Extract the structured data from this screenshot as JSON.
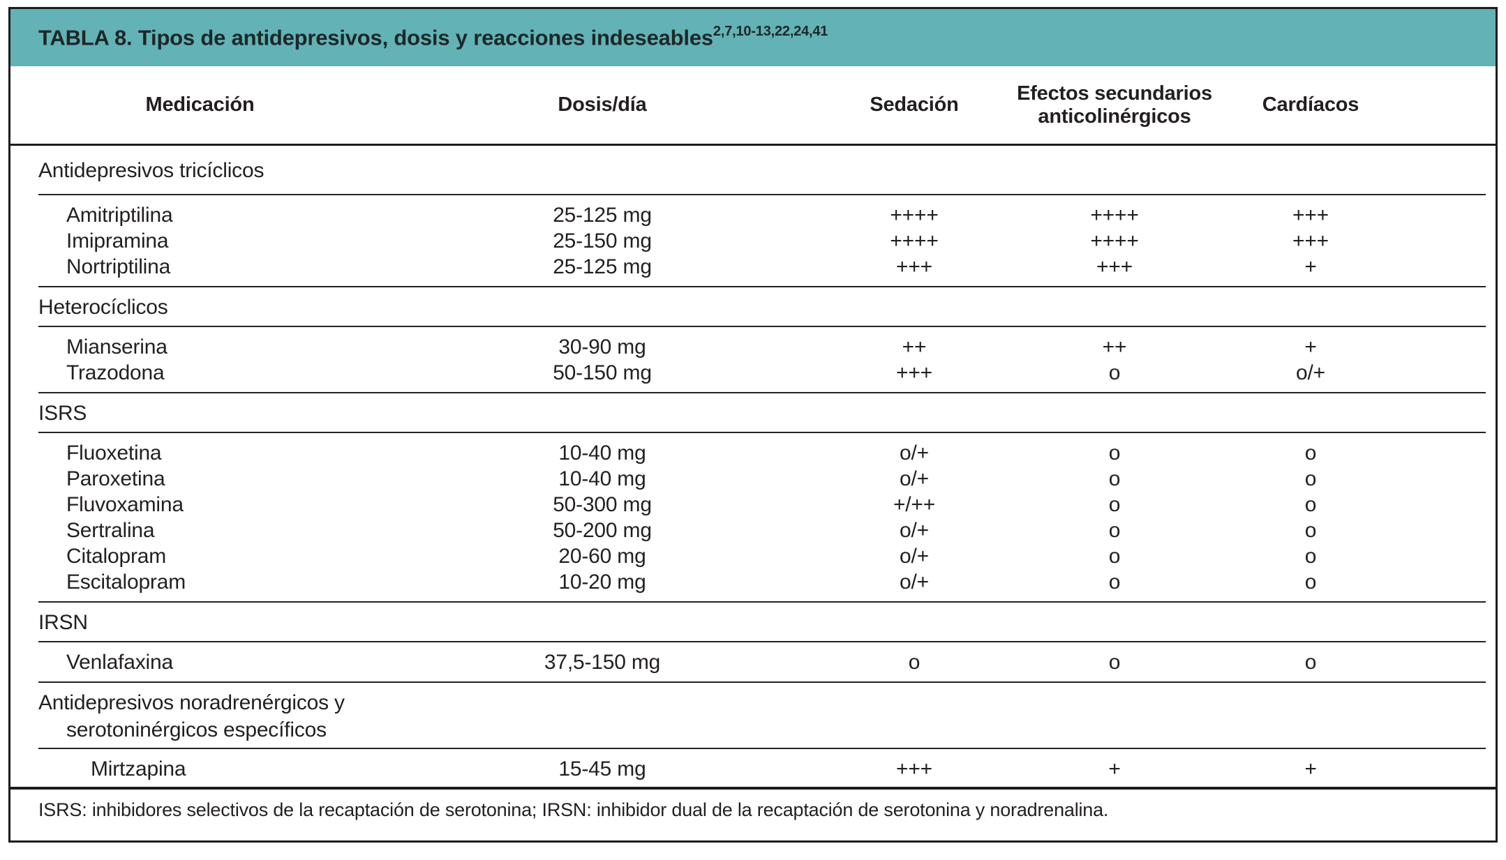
{
  "table": {
    "title": "TABLA 8. Tipos de antidepresivos, dosis y reacciones indeseables",
    "title_superscript": "2,7,10-13,22,24,41",
    "columns": [
      "Medicación",
      "Dosis/día",
      "Sedación",
      "Efectos secundarios anticolinérgicos",
      "Cardíacos"
    ],
    "sections": [
      {
        "label": "Antidepresivos tricíclicos",
        "rows": [
          {
            "name": "Amitriptilina",
            "dose": "25-125 mg",
            "sedation": "++++",
            "anticholinergic": "++++",
            "cardiac": "+++"
          },
          {
            "name": "Imipramina",
            "dose": "25-150 mg",
            "sedation": "++++",
            "anticholinergic": "++++",
            "cardiac": "+++"
          },
          {
            "name": "Nortriptilina",
            "dose": "25-125 mg",
            "sedation": "+++",
            "anticholinergic": "+++",
            "cardiac": "+"
          }
        ]
      },
      {
        "label": "Heterocíclicos",
        "rows": [
          {
            "name": "Mianserina",
            "dose": "30-90 mg",
            "sedation": "++",
            "anticholinergic": "++",
            "cardiac": "+"
          },
          {
            "name": "Trazodona",
            "dose": "50-150 mg",
            "sedation": "+++",
            "anticholinergic": "o",
            "cardiac": "o/+"
          }
        ]
      },
      {
        "label": "ISRS",
        "rows": [
          {
            "name": "Fluoxetina",
            "dose": "10-40 mg",
            "sedation": "o/+",
            "anticholinergic": "o",
            "cardiac": "o"
          },
          {
            "name": "Paroxetina",
            "dose": "10-40 mg",
            "sedation": "o/+",
            "anticholinergic": "o",
            "cardiac": "o"
          },
          {
            "name": "Fluvoxamina",
            "dose": "50-300 mg",
            "sedation": "+/++",
            "anticholinergic": "o",
            "cardiac": "o"
          },
          {
            "name": "Sertralina",
            "dose": "50-200 mg",
            "sedation": "o/+",
            "anticholinergic": "o",
            "cardiac": "o"
          },
          {
            "name": "Citalopram",
            "dose": "20-60 mg",
            "sedation": "o/+",
            "anticholinergic": "o",
            "cardiac": "o"
          },
          {
            "name": "Escitalopram",
            "dose": "10-20 mg",
            "sedation": "o/+",
            "anticholinergic": "o",
            "cardiac": "o"
          }
        ]
      },
      {
        "label": "IRSN",
        "rows": [
          {
            "name": "Venlafaxina",
            "dose": "37,5-150 mg",
            "sedation": "o",
            "anticholinergic": "o",
            "cardiac": "o"
          }
        ]
      },
      {
        "label": "Antidepresivos noradrenérgicos y serotoninérgicos específicos",
        "rows": [
          {
            "name": "Mirtzapina",
            "dose": "15-45 mg",
            "sedation": "+++",
            "anticholinergic": "+",
            "cardiac": "+",
            "indent": 2
          }
        ]
      }
    ],
    "footnote": "ISRS: inhibidores selectivos de la recaptación de serotonina; IRSN: inhibidor dual de la recaptación de serotonina y noradrenalina.",
    "colors": {
      "header_bg": "#62b2b6",
      "text": "#231f20",
      "border": "#1c1c1c"
    }
  }
}
